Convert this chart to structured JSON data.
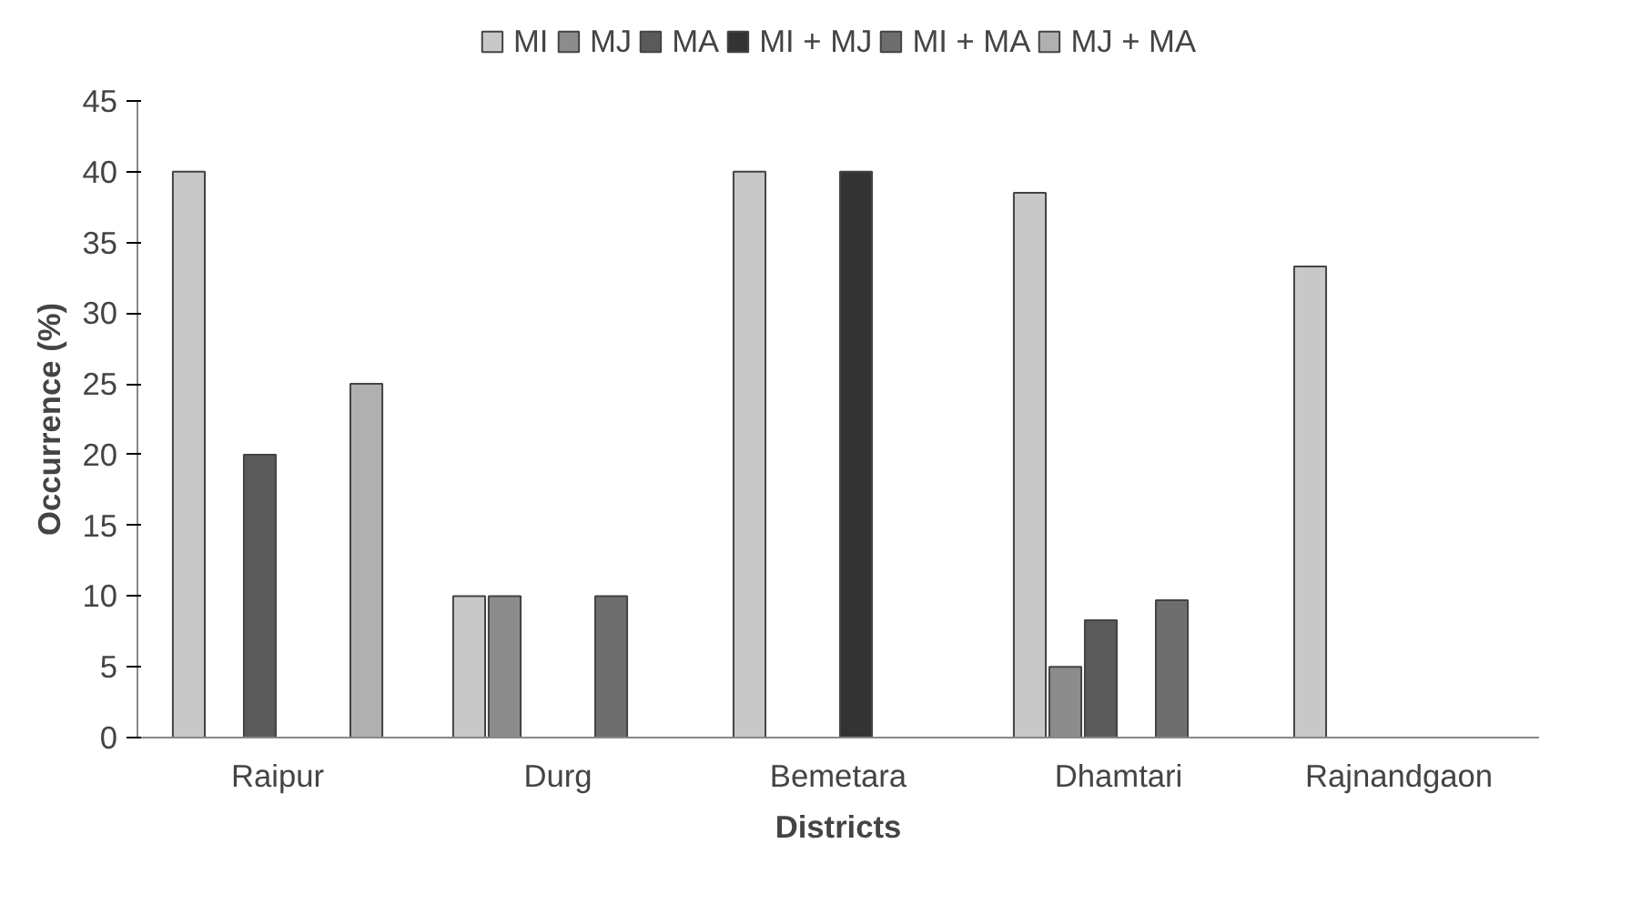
{
  "chart_data": {
    "type": "bar",
    "xlabel": "Districts",
    "ylabel": "Occurrence (%)",
    "categories": [
      "Raipur",
      "Durg",
      "Bemetara",
      "Dhamtari",
      "Rajnandgaon"
    ],
    "series": [
      {
        "name": "MI",
        "color": "#c8c8c8",
        "values": [
          40,
          10,
          40,
          38.5,
          33.3
        ]
      },
      {
        "name": "MJ",
        "color": "#8c8c8c",
        "values": [
          null,
          10,
          null,
          5,
          null
        ]
      },
      {
        "name": "MA",
        "color": "#5a5a5a",
        "values": [
          20,
          null,
          null,
          8.3,
          null
        ]
      },
      {
        "name": "MI + MJ",
        "color": "#333333",
        "values": [
          null,
          null,
          40,
          null,
          null
        ]
      },
      {
        "name": "MI + MA",
        "color": "#6e6e6e",
        "values": [
          null,
          10,
          null,
          9.7,
          null
        ]
      },
      {
        "name": "MJ + MA",
        "color": "#b0b0b0",
        "values": [
          25,
          null,
          null,
          null,
          null
        ]
      }
    ],
    "ylim": [
      0,
      45
    ],
    "yticks": [
      0,
      5,
      10,
      15,
      20,
      25,
      30,
      35,
      40,
      45
    ],
    "grid": false,
    "legend": "top"
  }
}
